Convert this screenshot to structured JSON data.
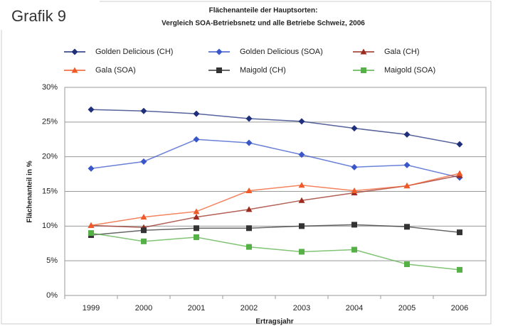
{
  "label": "Grafik 9",
  "chart_data": {
    "type": "line",
    "title": [
      "Flächenanteile der Hauptsorten:",
      "Vergleich SOA-Betriebsnetz und alle Betriebe Schweiz, 2006"
    ],
    "y_label": "Flächenanteil in %",
    "x_label": "Ertragsjahr",
    "categories": [
      "1999",
      "2000",
      "2001",
      "2002",
      "2003",
      "2004",
      "2005",
      "2006"
    ],
    "ylim": [
      0,
      30
    ],
    "yticks": [
      {
        "value": 0,
        "label": "0%"
      },
      {
        "value": 5,
        "label": "5%"
      },
      {
        "value": 10,
        "label": "10%"
      },
      {
        "value": 15,
        "label": "15%"
      },
      {
        "value": 20,
        "label": "20%"
      },
      {
        "value": 25,
        "label": "25%"
      },
      {
        "value": 30,
        "label": "30%"
      }
    ],
    "grid": true,
    "series": [
      {
        "name": "Golden Delicious (CH)",
        "color": "#1f2f7a",
        "marker": "diamond",
        "values": [
          26.8,
          26.6,
          26.2,
          25.5,
          25.1,
          24.1,
          23.2,
          21.8
        ]
      },
      {
        "name": "Golden Delicious (SOA)",
        "color": "#3a57c9",
        "marker": "diamond",
        "values": [
          18.3,
          19.3,
          22.5,
          22.0,
          20.3,
          18.5,
          18.8,
          17.0
        ]
      },
      {
        "name": "Gala (CH)",
        "color": "#9a2b1e",
        "marker": "triangle",
        "values": [
          10.1,
          9.8,
          11.3,
          12.4,
          13.7,
          14.8,
          15.8,
          17.3
        ]
      },
      {
        "name": "Gala (SOA)",
        "color": "#f05a28",
        "marker": "triangle",
        "values": [
          10.1,
          11.3,
          12.1,
          15.1,
          15.9,
          15.1,
          15.8,
          17.6
        ]
      },
      {
        "name": "Maigold (CH)",
        "color": "#333333",
        "marker": "square",
        "values": [
          8.7,
          9.4,
          9.7,
          9.7,
          10.0,
          10.2,
          9.9,
          9.1
        ]
      },
      {
        "name": "Maigold (SOA)",
        "color": "#55b046",
        "marker": "square",
        "values": [
          9.0,
          7.8,
          8.4,
          7.0,
          6.3,
          6.6,
          4.5,
          3.7
        ]
      }
    ]
  }
}
